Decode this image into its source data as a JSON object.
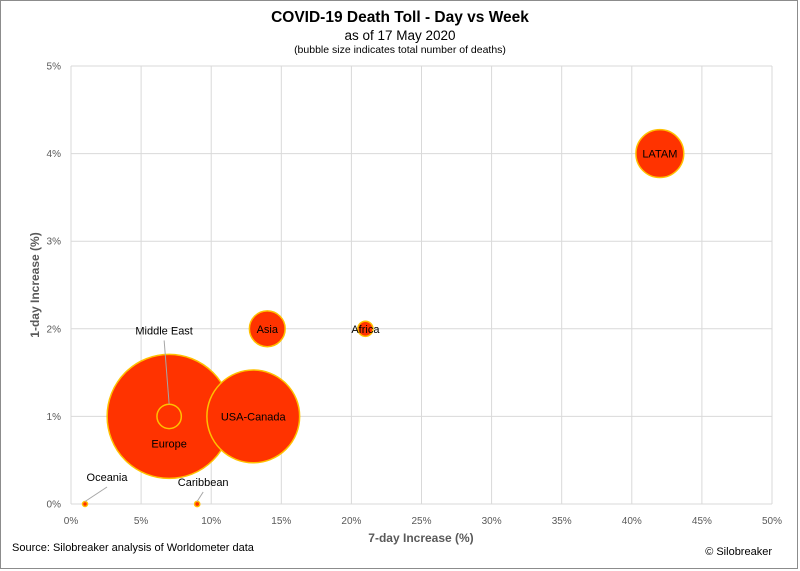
{
  "chart_data": {
    "type": "bubble",
    "title": "COVID-19 Death Toll - Day vs Week",
    "subtitle": "as of 17 May 2020",
    "note": "(bubble size indicates total number of deaths)",
    "xlabel": "7-day Increase (%)",
    "ylabel": "1-day Increase (%)",
    "xlim": [
      0,
      50
    ],
    "ylim": [
      0,
      5
    ],
    "x_ticks": [
      "0%",
      "5%",
      "10%",
      "15%",
      "20%",
      "25%",
      "30%",
      "35%",
      "40%",
      "45%",
      "50%"
    ],
    "y_ticks": [
      "0%",
      "1%",
      "2%",
      "3%",
      "4%",
      "5%"
    ],
    "grid": true,
    "colors": {
      "fill": "#ff3300",
      "stroke": "#ffc000",
      "grid": "#d9d9d9"
    },
    "series": [
      {
        "name": "Europe",
        "x": 7,
        "y": 1,
        "size": 168000
      },
      {
        "name": "USA-Canada",
        "x": 13,
        "y": 1,
        "size": 94000
      },
      {
        "name": "LATAM",
        "x": 42,
        "y": 4,
        "size": 25000
      },
      {
        "name": "Asia",
        "x": 14,
        "y": 2,
        "size": 14000
      },
      {
        "name": "Middle East",
        "x": 7,
        "y": 1,
        "size": 6500
      },
      {
        "name": "Africa",
        "x": 21,
        "y": 2,
        "size": 2500
      },
      {
        "name": "Caribbean",
        "x": 9,
        "y": 0,
        "size": 300
      },
      {
        "name": "Oceania",
        "x": 1,
        "y": 0,
        "size": 120
      }
    ]
  },
  "footer": {
    "source": "Source: Silobreaker analysis of Worldometer data",
    "credit": "© Silobreaker"
  }
}
